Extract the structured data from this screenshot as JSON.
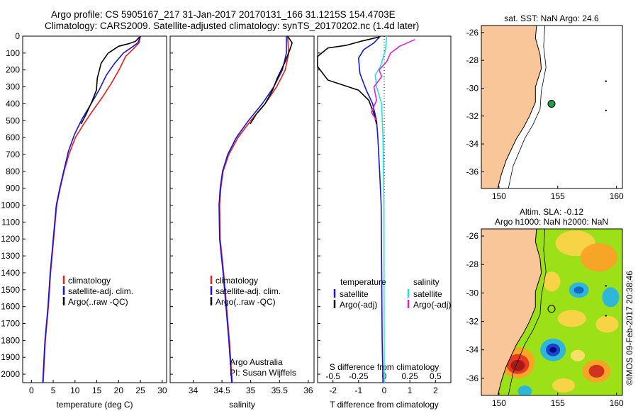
{
  "header": {
    "line1": "Argo profile: CS 5905167_217 31-Jan-2017 20170131_166 31.1215S 154.4703E",
    "line2": "Climatology: CARS2009. Satellite-adjusted climatology: synTS_20170202.nc (1.4d later)"
  },
  "colors": {
    "climatology": "#e8201c",
    "satellite": "#1515d8",
    "argo": "#000000",
    "salinity_sat": "#22e4e4",
    "salinity_argo": "#e020e0",
    "land": "#f9c69a"
  },
  "chart_data": [
    {
      "type": "line",
      "xlabel": "temperature (deg C)",
      "ylim": [
        2050,
        0
      ],
      "xlim": [
        -2,
        31
      ],
      "xticks": [
        "0",
        "5",
        "10",
        "15",
        "20",
        "25",
        "30"
      ],
      "yticks": [
        "0",
        "100",
        "200",
        "300",
        "400",
        "500",
        "600",
        "700",
        "800",
        "900",
        "1000",
        "1100",
        "1200",
        "1300",
        "1400",
        "1500",
        "1600",
        "1700",
        "1800",
        "1900",
        "2000"
      ],
      "legend": [
        "climatology",
        "satellite-adj. clim.",
        "Argo(..raw -QC)"
      ],
      "legend_location": "lower-center",
      "series": [
        {
          "name": "climatology",
          "color": "#e8201c",
          "points": [
            [
              25,
              0
            ],
            [
              24.7,
              40
            ],
            [
              23.2,
              80
            ],
            [
              21.6,
              120
            ],
            [
              20.1,
              200
            ],
            [
              18.3,
              280
            ],
            [
              16.3,
              360
            ],
            [
              14.1,
              440
            ],
            [
              12.0,
              520
            ],
            [
              10.1,
              600
            ],
            [
              8.6,
              700
            ],
            [
              7.5,
              800
            ],
            [
              6.6,
              900
            ],
            [
              5.8,
              1000
            ],
            [
              5.1,
              1200
            ],
            [
              4.4,
              1400
            ],
            [
              3.9,
              1600
            ],
            [
              3.2,
              1800
            ],
            [
              2.7,
              2050
            ]
          ]
        },
        {
          "name": "satellite-adj. clim.",
          "color": "#1515d8",
          "points": [
            [
              25,
              0
            ],
            [
              24.4,
              40
            ],
            [
              22.8,
              70
            ],
            [
              21.1,
              100
            ],
            [
              19.1,
              160
            ],
            [
              17.2,
              230
            ],
            [
              15.5,
              320
            ],
            [
              13.7,
              400
            ],
            [
              11.6,
              490
            ],
            [
              9.9,
              580
            ],
            [
              8.5,
              680
            ],
            [
              7.4,
              800
            ],
            [
              6.5,
              900
            ],
            [
              5.7,
              1000
            ],
            [
              5.0,
              1200
            ],
            [
              4.3,
              1400
            ],
            [
              3.8,
              1600
            ],
            [
              3.1,
              1800
            ],
            [
              2.6,
              2050
            ]
          ]
        },
        {
          "name": "Argo(..raw -QC)",
          "color": "#000000",
          "points": [
            [
              24.8,
              5
            ],
            [
              23.9,
              30
            ],
            [
              22.3,
              45
            ],
            [
              20.0,
              60
            ],
            [
              17.6,
              100
            ],
            [
              16.0,
              160
            ],
            [
              15.1,
              250
            ],
            [
              14.9,
              320
            ],
            [
              14.0,
              380
            ],
            [
              12.6,
              460
            ],
            [
              11.4,
              520
            ]
          ]
        }
      ]
    },
    {
      "type": "line",
      "xlabel": "salinity",
      "ylim": [
        2050,
        0
      ],
      "xlim": [
        33.6,
        36.1
      ],
      "xticks": [
        "34",
        "34.5",
        "35",
        "35.5",
        "36"
      ],
      "legend": [
        "climatology",
        "satellite-adj. clim.",
        "Argo(..raw -QC)"
      ],
      "legend_location": "lower-center",
      "annotation": [
        "Argo Australia",
        "PI: Susan Wijffels"
      ],
      "series": [
        {
          "name": "climatology",
          "color": "#e8201c",
          "points": [
            [
              35.64,
              0
            ],
            [
              35.66,
              100
            ],
            [
              35.6,
              200
            ],
            [
              35.45,
              300
            ],
            [
              35.25,
              400
            ],
            [
              35.0,
              500
            ],
            [
              34.78,
              600
            ],
            [
              34.62,
              700
            ],
            [
              34.52,
              800
            ],
            [
              34.48,
              900
            ],
            [
              34.46,
              1000
            ],
            [
              34.47,
              1200
            ],
            [
              34.53,
              1400
            ],
            [
              34.58,
              1600
            ],
            [
              34.63,
              1800
            ],
            [
              34.68,
              2050
            ]
          ]
        },
        {
          "name": "satellite-adj. clim.",
          "color": "#1515d8",
          "points": [
            [
              35.62,
              0
            ],
            [
              35.62,
              100
            ],
            [
              35.55,
              200
            ],
            [
              35.4,
              300
            ],
            [
              35.2,
              400
            ],
            [
              34.96,
              500
            ],
            [
              34.75,
              600
            ],
            [
              34.6,
              700
            ],
            [
              34.51,
              800
            ],
            [
              34.47,
              900
            ],
            [
              34.45,
              1000
            ],
            [
              34.46,
              1200
            ],
            [
              34.52,
              1400
            ],
            [
              34.57,
              1600
            ],
            [
              34.62,
              1800
            ],
            [
              34.67,
              2050
            ]
          ]
        },
        {
          "name": "Argo(..raw -QC)",
          "color": "#000000",
          "points": [
            [
              35.64,
              0
            ],
            [
              35.72,
              40
            ],
            [
              35.68,
              80
            ],
            [
              35.6,
              150
            ],
            [
              35.53,
              200
            ],
            [
              35.46,
              250
            ],
            [
              35.38,
              320
            ],
            [
              35.25,
              400
            ],
            [
              35.1,
              460
            ],
            [
              34.99,
              520
            ]
          ]
        }
      ]
    },
    {
      "type": "line",
      "xlabel": "T difference from climatology",
      "xlabel_top": "S difference from climatology",
      "ylim": [
        2050,
        0
      ],
      "xlim": [
        -2.6,
        2.6
      ],
      "xticks": [
        "-2",
        "-1",
        "0",
        "1",
        "2"
      ],
      "xticks_top": [
        "-0.5",
        "-0.25",
        "0",
        "0.25",
        "0.5"
      ],
      "legend_titles": [
        "temperature",
        "salinity"
      ],
      "legend": [
        "satellite",
        "Argo(-adj)",
        "satellite",
        "Argo(-adj)"
      ],
      "legend_location": "lower-center",
      "series": [
        {
          "name": "satellite",
          "color": "#1515d8",
          "points": [
            [
              -0.15,
              0
            ],
            [
              -0.4,
              40
            ],
            [
              -0.8,
              80
            ],
            [
              -1.0,
              130
            ],
            [
              -0.95,
              220
            ],
            [
              -0.7,
              320
            ],
            [
              -0.45,
              400
            ],
            [
              -0.3,
              500
            ],
            [
              -0.25,
              600
            ],
            [
              -0.18,
              800
            ],
            [
              -0.12,
              1000
            ],
            [
              -0.1,
              1400
            ],
            [
              -0.08,
              1800
            ],
            [
              -0.05,
              2050
            ]
          ]
        },
        {
          "name": "Argo(-adj)",
          "color": "#000000",
          "points": [
            [
              -0.2,
              5
            ],
            [
              -0.9,
              30
            ],
            [
              -1.5,
              55
            ],
            [
              -2.2,
              70
            ],
            [
              -2.6,
              120
            ],
            [
              -2.6,
              180
            ],
            [
              -2.2,
              260
            ],
            [
              -1.0,
              320
            ],
            [
              -0.6,
              380
            ],
            [
              -0.4,
              460
            ],
            [
              -0.3,
              520
            ]
          ]
        },
        {
          "name": "satellite",
          "color": "#22e4e4",
          "points": [
            [
              0.1,
              0
            ],
            [
              0.05,
              80
            ],
            [
              -0.15,
              180
            ],
            [
              -0.35,
              230
            ],
            [
              -0.3,
              300
            ],
            [
              -0.1,
              400
            ],
            [
              -0.05,
              600
            ],
            [
              -0.03,
              800
            ],
            [
              -0.01,
              1000
            ],
            [
              0.0,
              2050
            ]
          ]
        },
        {
          "name": "Argo(-adj)",
          "color": "#e020e0",
          "points": [
            [
              1.2,
              20
            ],
            [
              0.6,
              60
            ],
            [
              0.25,
              100
            ],
            [
              0.1,
              150
            ],
            [
              -0.2,
              200
            ],
            [
              -0.1,
              240
            ],
            [
              -0.4,
              300
            ],
            [
              -0.3,
              380
            ],
            [
              -0.5,
              450
            ],
            [
              -0.3,
              500
            ]
          ]
        }
      ]
    }
  ],
  "map_top": {
    "title": "sat. SST: NaN Argo: 24.6",
    "xticks": [
      "150",
      "155",
      "160"
    ],
    "yticks": [
      "-26",
      "-28",
      "-30",
      "-32",
      "-34",
      "-36"
    ]
  },
  "map_bottom": {
    "title1": "Altim. SLA: -0.12",
    "title2": "Argo h1000: NaN h2000: NaN",
    "xticks": [
      "150",
      "155",
      "160"
    ],
    "yticks": [
      "-26",
      "-28",
      "-30",
      "-32",
      "-34",
      "-36"
    ]
  },
  "footer": {
    "stamp": "©IMOS 09-Feb-2017 20:38:46"
  }
}
